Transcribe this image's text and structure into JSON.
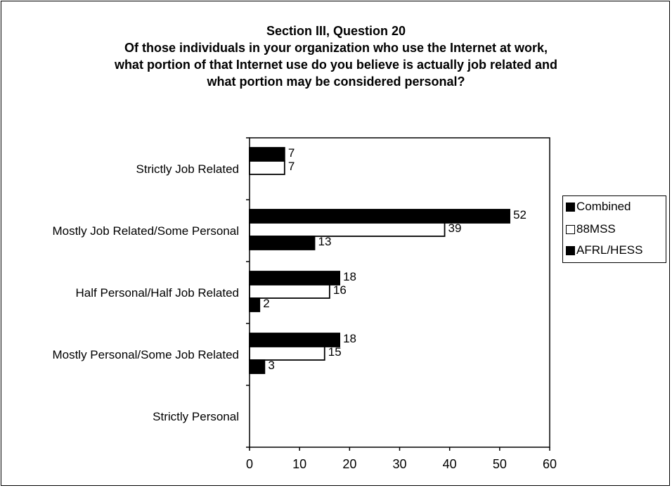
{
  "title_lines": [
    "Section III, Question 20",
    "Of those individuals in your organization who use the Internet at work,",
    "what portion of that Internet use do you believe is actually job related and",
    "what portion may be considered personal?"
  ],
  "chart_data": {
    "type": "bar",
    "orientation": "horizontal",
    "categories": [
      "Strictly Job Related",
      "Mostly Job Related/Some Personal",
      "Half Personal/Half Job Related",
      "Mostly Personal/Some Job Related",
      "Strictly Personal"
    ],
    "series": [
      {
        "name": "Combined",
        "color": "#000000",
        "values": [
          7,
          52,
          18,
          18,
          null
        ]
      },
      {
        "name": "88MSS",
        "color": "#ffffff",
        "values": [
          7,
          39,
          16,
          15,
          null
        ]
      },
      {
        "name": "AFRL/HESS",
        "color": "#000000",
        "values": [
          null,
          13,
          2,
          3,
          null
        ]
      }
    ],
    "xlim": [
      0,
      60
    ],
    "xticks": [
      0,
      10,
      20,
      30,
      40,
      50,
      60
    ],
    "grid": false,
    "legend_position": "right"
  }
}
